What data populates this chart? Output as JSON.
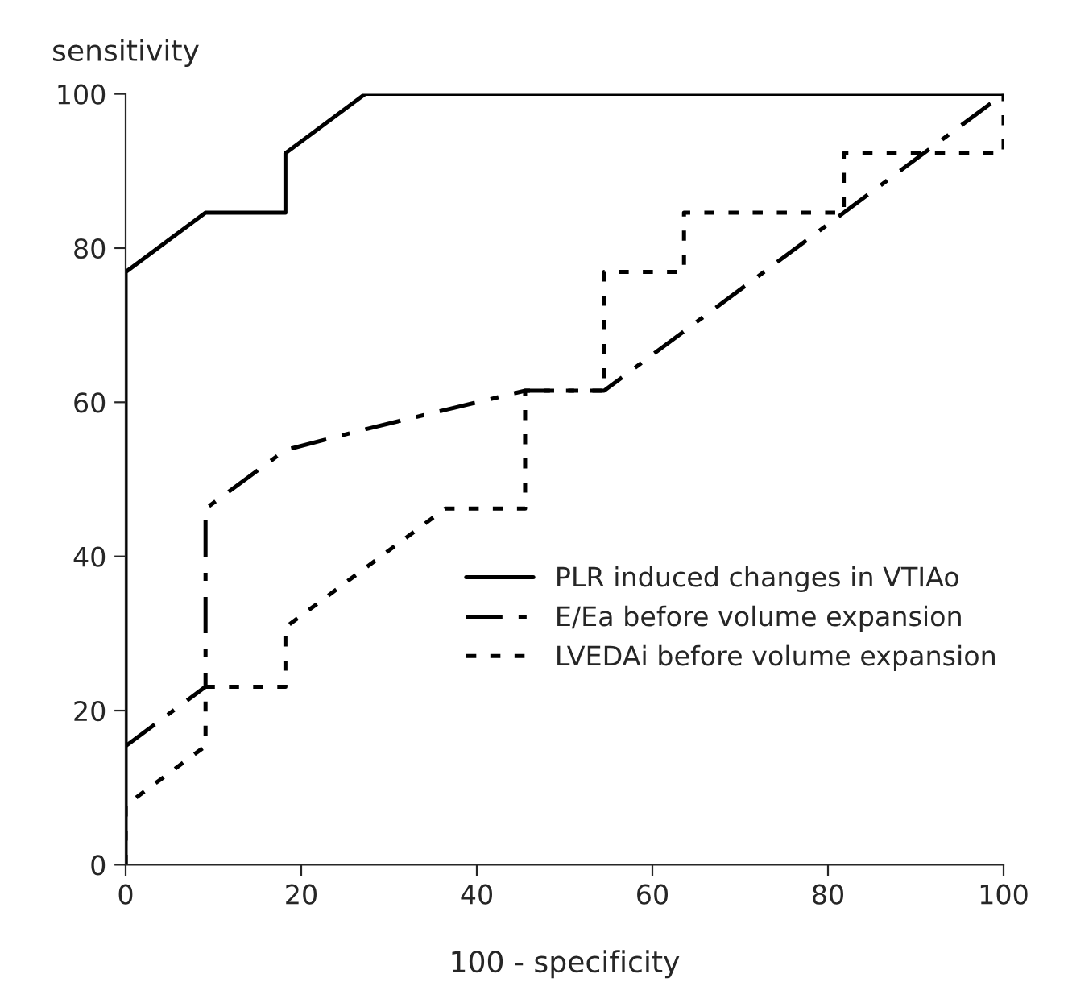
{
  "chart_data": {
    "type": "line",
    "xlabel": "100 - specificity",
    "ylabel": "sensitivity",
    "xlim": [
      0,
      100
    ],
    "ylim": [
      0,
      100
    ],
    "xticks": [
      0,
      20,
      40,
      60,
      80,
      100
    ],
    "yticks": [
      0,
      20,
      40,
      60,
      80,
      100
    ],
    "grid": false,
    "legend": "bottom right",
    "marker": "none",
    "series": [
      {
        "name": "PLR induced changes in VTIAo",
        "color": "#000000",
        "line_style": "solid",
        "x": [
          0,
          0,
          9.1,
          18.2,
          18.2,
          27.3,
          100
        ],
        "values": [
          0,
          76.9,
          84.6,
          84.6,
          92.3,
          100,
          100
        ]
      },
      {
        "name": "E/Ea before volume expansion",
        "color": "#000000",
        "line_style": "dashed",
        "x": [
          0,
          9.1,
          9.1,
          18.2,
          27.3,
          36.4,
          45.5,
          54.5,
          81.8,
          100
        ],
        "values": [
          15.4,
          23.1,
          46.2,
          53.8,
          56.5,
          59,
          61.5,
          61.5,
          84.6,
          100
        ]
      },
      {
        "name": "LVEDAi before volume expansion",
        "color": "#000000",
        "line_style": "dotted",
        "x": [
          0,
          0,
          9.1,
          9.1,
          18.2,
          18.2,
          27.3,
          36.4,
          45.5,
          45.5,
          54.5,
          54.5,
          63.6,
          63.6,
          81.8,
          81.8,
          100,
          100
        ],
        "values": [
          0,
          7.7,
          15.4,
          23.1,
          23.1,
          30.8,
          38.5,
          46.2,
          46.2,
          61.5,
          61.5,
          76.9,
          76.9,
          84.6,
          84.6,
          92.3,
          92.3,
          100
        ]
      }
    ]
  }
}
